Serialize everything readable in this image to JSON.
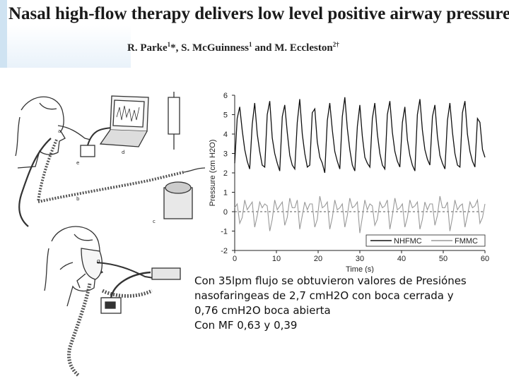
{
  "slide": {
    "title": "Nasal high-flow therapy delivers low level positive airway pressure",
    "authors": {
      "name1": "R. Parke",
      "sup1": "1",
      "name2": "*, S. McGuinness",
      "sup2": "1",
      "name3": " and M. Eccleston",
      "sup3": "2",
      "dagger": "†"
    },
    "figure_labels": [
      "a",
      "d",
      "e",
      "b",
      "c",
      "g"
    ],
    "caption": [
      "Con 35lpm flujo se obtuvieron valores de Presiónes",
      "nasofaringeas  de 2,7 cmH2O  con boca cerrada  y",
      "0,76 cmH2O boca abierta",
      "Con MF 0,63 y 0,39"
    ]
  },
  "chart_data": {
    "type": "line",
    "xlabel": "Time (s)",
    "ylabel": "Pressure (cm H2O)",
    "xlim": [
      0,
      60
    ],
    "ylim": [
      -2,
      6
    ],
    "xticks": [
      0,
      10,
      20,
      30,
      40,
      50,
      60
    ],
    "yticks": [
      -2,
      -1,
      0,
      1,
      2,
      3,
      4,
      5,
      6
    ],
    "reference_line_y": 0,
    "legend_position": "bottom-right",
    "series": [
      {
        "name": "NHFMC",
        "color": "#111111",
        "x": [
          0,
          0.6,
          1.2,
          1.8,
          2.4,
          3,
          3.6,
          4.2,
          4.8,
          5.4,
          6,
          6.6,
          7.2,
          7.8,
          8.4,
          9,
          9.6,
          10.2,
          10.8,
          11.4,
          12,
          12.6,
          13.2,
          13.8,
          14.4,
          15,
          15.6,
          16.2,
          16.8,
          17.4,
          18,
          18.6,
          19.2,
          19.8,
          20.4,
          21,
          21.6,
          22.2,
          22.8,
          23.4,
          24,
          24.6,
          25.2,
          25.8,
          26.4,
          27,
          27.6,
          28.2,
          28.8,
          29.4,
          30,
          30.6,
          31.2,
          31.8,
          32.4,
          33,
          33.6,
          34.2,
          34.8,
          35.4,
          36,
          36.6,
          37.2,
          37.8,
          38.4,
          39,
          39.6,
          40.2,
          40.8,
          41.4,
          42,
          42.6,
          43.2,
          43.8,
          44.4,
          45,
          45.6,
          46.2,
          46.8,
          47.4,
          48,
          48.6,
          49.2,
          49.8,
          50.4,
          51,
          51.6,
          52.2,
          52.8,
          53.4,
          54,
          54.6,
          55.2,
          55.8,
          56.4,
          57,
          57.6,
          58.2,
          58.8,
          59.4,
          60
        ],
        "values": [
          2.5,
          4.8,
          5.4,
          4.2,
          3.2,
          2.6,
          2.2,
          4.5,
          5.6,
          4.0,
          3.1,
          2.4,
          2.3,
          5.0,
          5.7,
          3.8,
          3.0,
          2.5,
          2.1,
          4.9,
          5.5,
          4.1,
          2.9,
          2.4,
          2.2,
          4.6,
          5.8,
          4.0,
          3.0,
          2.3,
          2.4,
          5.1,
          5.3,
          3.6,
          2.8,
          2.5,
          2.0,
          4.7,
          5.6,
          4.2,
          3.1,
          2.6,
          2.2,
          4.9,
          5.9,
          4.3,
          3.2,
          2.4,
          2.1,
          4.4,
          5.5,
          3.9,
          2.8,
          2.5,
          2.3,
          4.8,
          5.6,
          4.0,
          3.0,
          2.4,
          2.2,
          5.0,
          5.7,
          4.1,
          3.1,
          2.6,
          2.3,
          4.6,
          5.4,
          3.7,
          2.9,
          2.4,
          2.1,
          5.0,
          5.8,
          4.2,
          3.2,
          2.7,
          2.4,
          4.9,
          5.5,
          3.9,
          2.9,
          2.5,
          2.2,
          4.7,
          5.6,
          4.1,
          3.0,
          2.4,
          2.3,
          5.1,
          5.7,
          4.0,
          3.1,
          2.6,
          2.3,
          4.8,
          4.6,
          3.2,
          2.8
        ]
      },
      {
        "name": "FMMC",
        "color": "#999999",
        "x": [
          0,
          0.6,
          1.2,
          1.8,
          2.4,
          3,
          3.6,
          4.2,
          4.8,
          5.4,
          6,
          6.6,
          7.2,
          7.8,
          8.4,
          9,
          9.6,
          10.2,
          10.8,
          11.4,
          12,
          12.6,
          13.2,
          13.8,
          14.4,
          15,
          15.6,
          16.2,
          16.8,
          17.4,
          18,
          18.6,
          19.2,
          19.8,
          20.4,
          21,
          21.6,
          22.2,
          22.8,
          23.4,
          24,
          24.6,
          25.2,
          25.8,
          26.4,
          27,
          27.6,
          28.2,
          28.8,
          29.4,
          30,
          30.6,
          31.2,
          31.8,
          32.4,
          33,
          33.6,
          34.2,
          34.8,
          35.4,
          36,
          36.6,
          37.2,
          37.8,
          38.4,
          39,
          39.6,
          40.2,
          40.8,
          41.4,
          42,
          42.6,
          43.2,
          43.8,
          44.4,
          45,
          45.6,
          46.2,
          46.8,
          47.4,
          48,
          48.6,
          49.2,
          49.8,
          50.4,
          51,
          51.6,
          52.2,
          52.8,
          53.4,
          54,
          54.6,
          55.2,
          55.8,
          56.4,
          57,
          57.6,
          58.2,
          58.8,
          59.4,
          60
        ],
        "values": [
          0.2,
          0.4,
          -0.6,
          -0.3,
          0.6,
          0.1,
          0.3,
          0.5,
          -0.8,
          -0.2,
          0.5,
          0.2,
          0.4,
          0.3,
          -1.0,
          -0.4,
          0.6,
          0.1,
          0.3,
          0.5,
          -0.7,
          -0.3,
          0.7,
          0.2,
          0.2,
          0.6,
          -0.9,
          -0.2,
          0.5,
          0.1,
          0.4,
          0.4,
          -0.8,
          -0.4,
          0.8,
          0.2,
          0.3,
          0.5,
          -0.9,
          -0.3,
          0.6,
          0.1,
          0.2,
          0.4,
          -0.8,
          -0.2,
          0.7,
          0.2,
          0.3,
          0.5,
          -1.1,
          -0.3,
          0.6,
          0.1,
          0.4,
          0.3,
          -0.7,
          -0.4,
          0.5,
          0.2,
          0.3,
          0.6,
          -0.9,
          -0.2,
          0.7,
          0.1,
          0.2,
          0.4,
          -0.8,
          -0.3,
          0.6,
          0.2,
          0.3,
          0.5,
          -0.9,
          -0.4,
          0.5,
          0.1,
          0.4,
          0.4,
          -0.7,
          -0.2,
          0.8,
          0.2,
          0.2,
          0.5,
          -1.0,
          -0.3,
          0.6,
          0.1,
          0.3,
          0.4,
          -0.8,
          -0.2,
          0.5,
          0.2,
          0.3,
          0.6,
          -0.6,
          -0.3,
          0.4
        ]
      }
    ]
  }
}
